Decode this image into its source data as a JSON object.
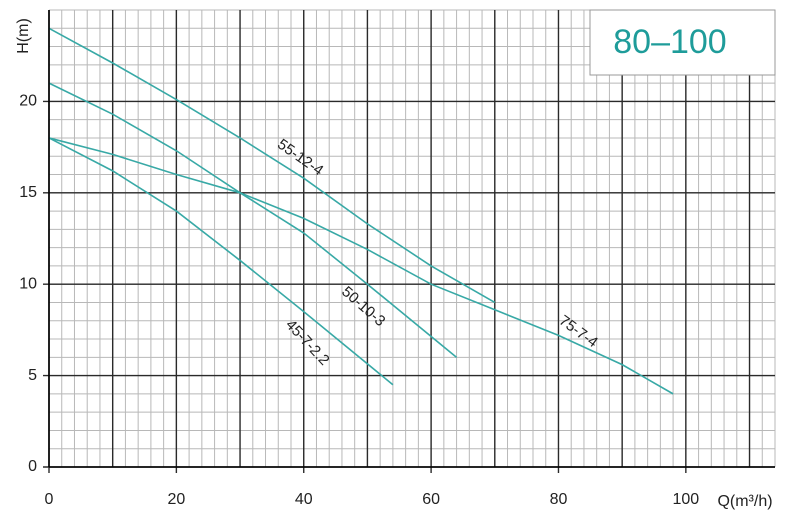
{
  "chart_data": {
    "type": "line",
    "title": "80–100",
    "x_label": "Q(m³/h)",
    "y_label": "H(m)",
    "xlim": [
      0,
      114
    ],
    "ylim": [
      0,
      25
    ],
    "xticks": [
      0,
      20,
      40,
      60,
      80,
      100
    ],
    "yticks": [
      0,
      5,
      10,
      15,
      20
    ],
    "grid": true,
    "series": [
      {
        "name": "55-12-4",
        "color": "#38a9a6",
        "x": [
          0,
          10,
          20,
          30,
          40,
          50,
          60,
          70
        ],
        "values": [
          24,
          22.1,
          20.1,
          18,
          15.8,
          13.3,
          11,
          9
        ]
      },
      {
        "name": "75-7-4",
        "color": "#38a9a6",
        "x": [
          0,
          10,
          20,
          30,
          40,
          50,
          60,
          70,
          80,
          90,
          98
        ],
        "values": [
          18,
          17.1,
          16,
          15,
          13.6,
          11.9,
          10,
          8.6,
          7.2,
          5.6,
          4
        ]
      },
      {
        "name": "50-10-3",
        "color": "#38a9a6",
        "x": [
          0,
          10,
          20,
          30,
          40,
          50,
          64
        ],
        "values": [
          21,
          19.3,
          17.3,
          15,
          12.8,
          10,
          6
        ]
      },
      {
        "name": "45-7-2.2",
        "color": "#38a9a6",
        "x": [
          0,
          10,
          20,
          30,
          40,
          54
        ],
        "values": [
          18,
          16.2,
          14,
          11.3,
          8.5,
          4.5
        ]
      }
    ]
  }
}
